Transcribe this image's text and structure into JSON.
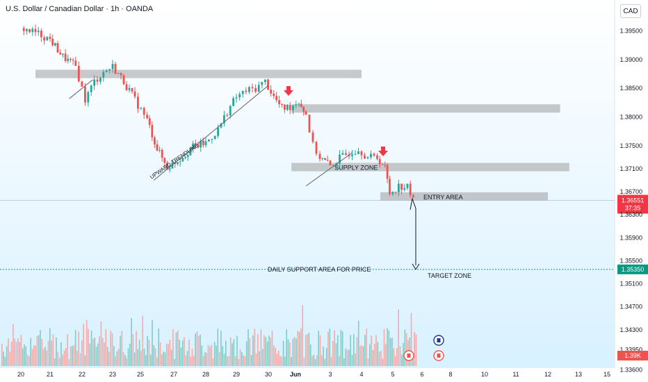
{
  "header": {
    "title": "U.S. Dollar / Canadian Dollar · 1h · OANDA",
    "currency_button": "CAD"
  },
  "colors": {
    "up": "#26a69a",
    "down": "#ef5350",
    "zone": "#9e9e9e",
    "arrow_marker": "#f23645",
    "current_price_bg": "#f23645",
    "support_price_bg": "#089981",
    "volume_up": "#80cbc4",
    "volume_down": "#f7a9a7"
  },
  "chart_data": {
    "type": "candlestick",
    "y_axis": {
      "range": [
        1.3385,
        1.3965
      ],
      "ticks": [
        "1.39500",
        "1.39000",
        "1.38500",
        "1.38000",
        "1.37500",
        "1.37100",
        "1.36700",
        "1.36300",
        "1.35900",
        "1.35500",
        "1.35100",
        "1.34700",
        "1.34300",
        "1.33950",
        "1.33600"
      ]
    },
    "x_axis": {
      "ticks": [
        "20",
        "21",
        "22",
        "23",
        "25",
        "27",
        "28",
        "29",
        "30",
        "Jun",
        "3",
        "4",
        "5",
        "6",
        "8",
        "10",
        "11",
        "12",
        "13",
        "15"
      ]
    },
    "price_path": [
      [
        0,
        1.3955
      ],
      [
        0.6,
        1.3945
      ],
      [
        1,
        1.3935
      ],
      [
        1.4,
        1.3905
      ],
      [
        1.8,
        1.3888
      ],
      [
        2.1,
        1.383
      ],
      [
        2.4,
        1.3862
      ],
      [
        2.7,
        1.3878
      ],
      [
        3.0,
        1.3888
      ],
      [
        3.4,
        1.3862
      ],
      [
        3.8,
        1.383
      ],
      [
        4.2,
        1.3795
      ],
      [
        4.5,
        1.3745
      ],
      [
        4.8,
        1.3712
      ],
      [
        5.2,
        1.3728
      ],
      [
        5.6,
        1.3748
      ],
      [
        6.0,
        1.3755
      ],
      [
        6.4,
        1.3778
      ],
      [
        6.7,
        1.381
      ],
      [
        7.0,
        1.3835
      ],
      [
        7.3,
        1.3845
      ],
      [
        7.6,
        1.385
      ],
      [
        7.9,
        1.3862
      ],
      [
        8.2,
        1.3835
      ],
      [
        8.5,
        1.3815
      ],
      [
        8.8,
        1.3818
      ],
      [
        9.1,
        1.3828
      ],
      [
        9.3,
        1.3805
      ],
      [
        9.5,
        1.375
      ],
      [
        9.7,
        1.373
      ],
      [
        10.0,
        1.3715
      ],
      [
        10.3,
        1.3728
      ],
      [
        10.6,
        1.3738
      ],
      [
        10.9,
        1.3745
      ],
      [
        11.2,
        1.373
      ],
      [
        11.5,
        1.373
      ],
      [
        11.75,
        1.3712
      ],
      [
        11.9,
        1.3668
      ],
      [
        12.2,
        1.368
      ],
      [
        12.5,
        1.3678
      ],
      [
        12.7,
        1.3655
      ]
    ],
    "zones": [
      {
        "y": 1.3875,
        "from": 0.5,
        "to": 11.0
      },
      {
        "y": 1.3815,
        "from": 8.85,
        "to": 17.4
      },
      {
        "label": "SUPPLY ZONE",
        "y": 1.3713,
        "from": 8.85,
        "to": 17.7
      },
      {
        "label": "ENTRY AREA",
        "y": 1.3662,
        "from": 11.6,
        "to": 17.0
      }
    ],
    "horizontal_lines": [
      {
        "label": "DAILY SUPPORT AREA FOR PRICE",
        "y": 1.3535,
        "price_label": "1.35350"
      },
      {
        "y": 1.3655,
        "price_label": "1.36551",
        "countdown": "37:35"
      }
    ],
    "annotations": {
      "trendline_label": "UPWARD TRENDLINE",
      "target_label": "TARGET ZONE",
      "projected_target": 1.3535
    },
    "volume": {
      "axis_label": "1.39K"
    }
  }
}
